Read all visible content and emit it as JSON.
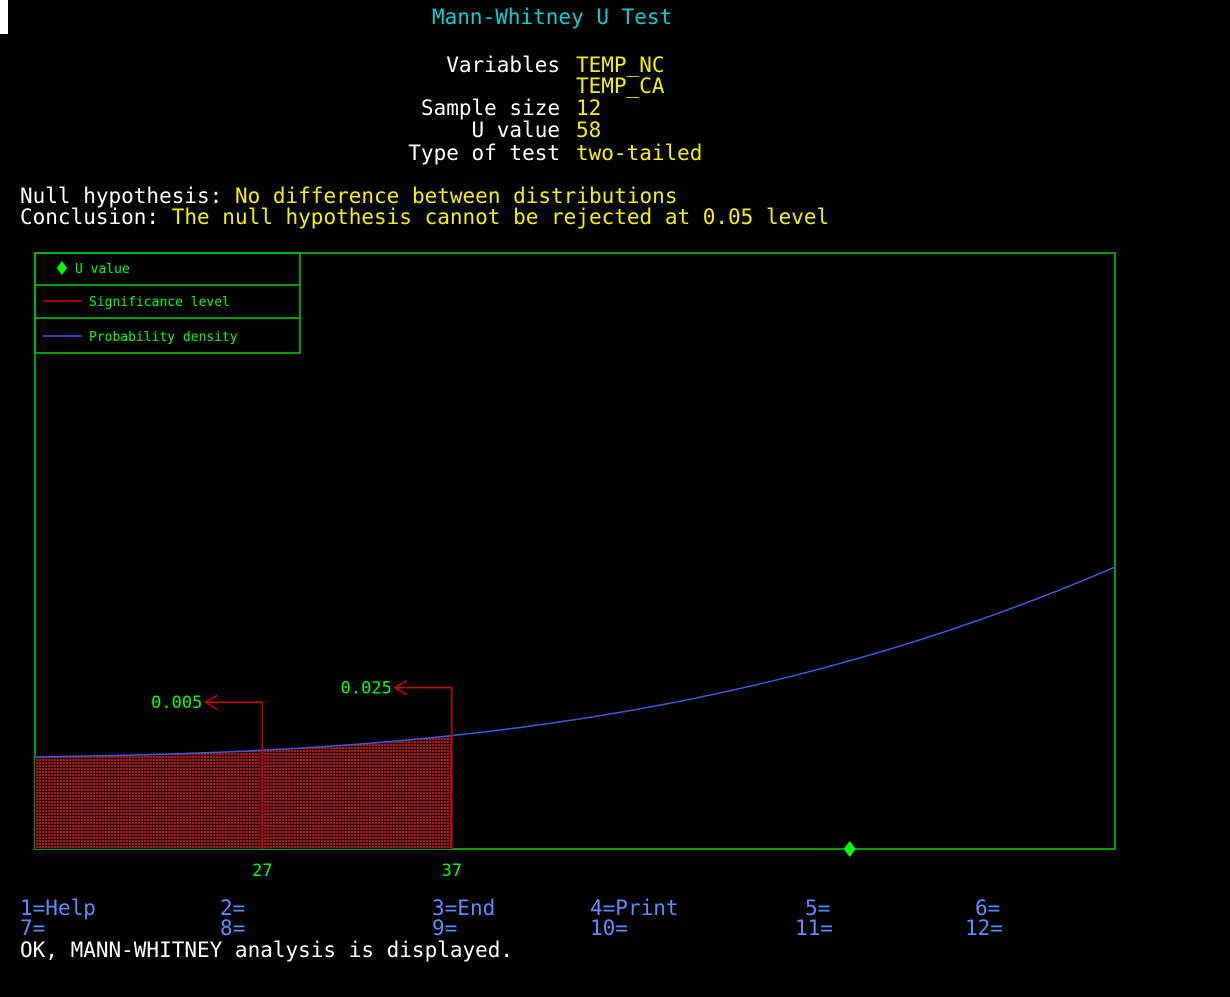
{
  "header": {
    "title": "Mann-Whitney U Test",
    "variables_label": "Variables",
    "variables": [
      "TEMP_NC",
      "TEMP_CA"
    ],
    "sample_size_label": "Sample size",
    "sample_size": "12",
    "u_value_label": "U value",
    "u_value": "58",
    "test_type_label": "Type of test",
    "test_type": "two-tailed"
  },
  "hypothesis": {
    "null_label": "Null hypothesis:",
    "null_text": "No difference between distributions",
    "conclusion_label": "Conclusion:",
    "conclusion_text": "The null hypothesis cannot be rejected at 0.05 level"
  },
  "chart_data": {
    "type": "area",
    "title": "",
    "xlabel": "",
    "ylabel": "",
    "legend": [
      {
        "name": "U value",
        "marker": "diamond",
        "color": "#00ff00"
      },
      {
        "name": "Significance level",
        "marker": "line",
        "color": "#d00000"
      },
      {
        "name": "Probability density",
        "marker": "line",
        "color": "#3a5cd8"
      }
    ],
    "legend_position": "top-left",
    "x_range": [
      15,
      72
    ],
    "x_ticks": [
      27,
      37
    ],
    "x_tick_labels": [
      "27",
      "37"
    ],
    "u_value": 58,
    "critical_values": [
      {
        "x": 27,
        "alpha": "0.005"
      },
      {
        "x": 37,
        "alpha": "0.025"
      }
    ],
    "colors": {
      "axes": "#00d000",
      "density": "#3a5cd8",
      "significance": "#d00000",
      "u_marker": "#00ff00",
      "fill": "#8a1010"
    }
  },
  "function_keys": [
    {
      "key": "1=",
      "label": "Help"
    },
    {
      "key": "2=",
      "label": ""
    },
    {
      "key": "3=",
      "label": "End"
    },
    {
      "key": "4=",
      "label": "Print"
    },
    {
      "key": "5=",
      "label": ""
    },
    {
      "key": "6=",
      "label": ""
    },
    {
      "key": "7=",
      "label": ""
    },
    {
      "key": "8=",
      "label": ""
    },
    {
      "key": "9=",
      "label": ""
    },
    {
      "key": "10=",
      "label": ""
    },
    {
      "key": "11=",
      "label": ""
    },
    {
      "key": "12=",
      "label": ""
    }
  ],
  "status_message": "OK, MANN-WHITNEY analysis is displayed."
}
